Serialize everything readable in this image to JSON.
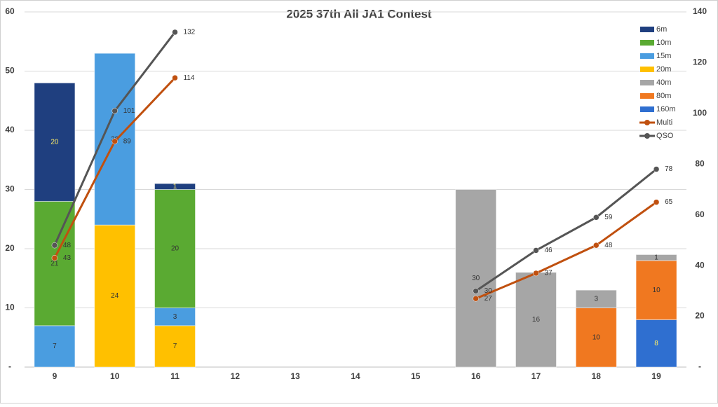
{
  "chart_data": {
    "type": "bar",
    "title": "2025 37th All JA1 Contest",
    "categories": [
      "9",
      "10",
      "11",
      "12",
      "13",
      "14",
      "15",
      "16",
      "17",
      "18",
      "19"
    ],
    "stacked": true,
    "series": [
      {
        "name": "6m",
        "color": "#1f3f7f",
        "values": [
          20,
          null,
          1,
          null,
          null,
          null,
          null,
          null,
          null,
          null,
          null
        ]
      },
      {
        "name": "10m",
        "color": "#5aaa32",
        "values": [
          21,
          null,
          20,
          null,
          null,
          null,
          null,
          null,
          null,
          null,
          null
        ]
      },
      {
        "name": "15m",
        "color": "#4a9de0",
        "values": [
          7,
          29,
          3,
          null,
          null,
          null,
          null,
          null,
          null,
          null,
          null
        ]
      },
      {
        "name": "20m",
        "color": "#ffc000",
        "values": [
          null,
          24,
          7,
          null,
          null,
          null,
          null,
          null,
          null,
          null,
          null
        ]
      },
      {
        "name": "40m",
        "color": "#a6a6a6",
        "values": [
          null,
          null,
          null,
          null,
          null,
          null,
          null,
          30,
          16,
          3,
          1
        ]
      },
      {
        "name": "80m",
        "color": "#f07820",
        "values": [
          null,
          null,
          null,
          null,
          null,
          null,
          null,
          null,
          null,
          10,
          10
        ]
      },
      {
        "name": "160m",
        "color": "#2f6fd0",
        "values": [
          null,
          null,
          null,
          null,
          null,
          null,
          null,
          null,
          null,
          null,
          8
        ]
      },
      {
        "name": "Multi",
        "type": "line",
        "axis": "y2",
        "color": "#c0500f",
        "values": [
          43,
          89,
          114,
          null,
          null,
          null,
          null,
          27,
          37,
          48,
          65
        ]
      },
      {
        "name": "QSO",
        "type": "line",
        "axis": "y2",
        "color": "#555555",
        "values": [
          48,
          101,
          132,
          null,
          null,
          null,
          null,
          30,
          46,
          59,
          78
        ]
      }
    ],
    "ylim": [
      0,
      60
    ],
    "yticks": [
      {
        "value": 0,
        "label": "-"
      },
      10,
      20,
      30,
      40,
      50,
      60
    ],
    "y2lim": [
      0,
      140
    ],
    "y2ticks": [
      {
        "value": 0,
        "label": "-"
      },
      20,
      40,
      60,
      80,
      100,
      120,
      140
    ],
    "grid": true,
    "legend": "right"
  }
}
